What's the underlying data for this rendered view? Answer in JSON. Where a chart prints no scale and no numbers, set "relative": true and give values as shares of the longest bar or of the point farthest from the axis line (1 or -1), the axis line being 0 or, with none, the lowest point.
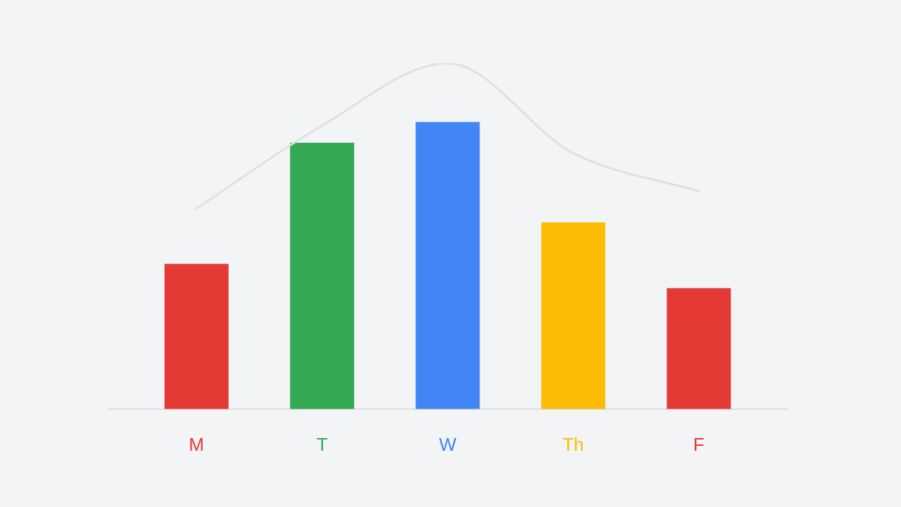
{
  "chart_data": {
    "type": "bar",
    "relative": true,
    "categories": [
      "M",
      "T",
      "W",
      "Th",
      "F"
    ],
    "series": [
      {
        "colors": [
          "#e53935",
          "#34a853",
          "#4285f4",
          "#fbbc05",
          "#e53935"
        ],
        "values": [
          0.42,
          0.77,
          0.83,
          0.54,
          0.35
        ]
      },
      {
        "type": "line",
        "color": "#e0e0e0",
        "values": [
          0.58,
          0.82,
          1,
          0.74,
          0.63
        ]
      }
    ],
    "legend": false,
    "marker": "none",
    "grid": false
  }
}
